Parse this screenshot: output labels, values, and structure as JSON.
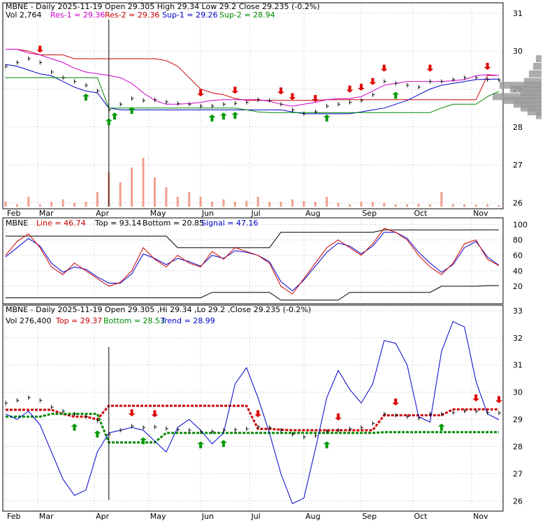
{
  "colors": {
    "price_bars": "#000000",
    "volume_bars": "#f0a08c",
    "resistance": "#cc0000",
    "support": "#008800",
    "res1_line": "#cc00cc",
    "sup1_line": "#0000cc",
    "trend_line": "#0000cc",
    "signal_line": "#cc0000",
    "sell_arrow": "#dd0000",
    "buy_arrow": "#009900",
    "volume_profile": "#999999",
    "grid": "#bbbbbb"
  },
  "x_axis": {
    "months": [
      "Feb",
      "Mar",
      "Apr",
      "May",
      "Jun",
      "Jul",
      "Aug",
      "Sep",
      "Oct",
      "Nov"
    ]
  },
  "chart_data": [
    {
      "type": "line",
      "panel": "price-support-resistance",
      "header": {
        "symbol": "MBNE",
        "title": "MBNE - Daily 2025-11-19 Open 29.305  High 29.34  Low 29.2  Close 29.235 (-0.2%)",
        "vol": "Vol 2,764",
        "res1": "Res-1 = 29.36",
        "res2": "Res-2 = 29.36",
        "sup1": "Sup-1 = 29.26",
        "sup2": "Sup-2 = 28.94"
      },
      "y_ticks": [
        26,
        27,
        28,
        29,
        30,
        31
      ],
      "ylim": [
        25.9,
        31.2
      ],
      "series": [
        {
          "name": "Res-1",
          "values": [
            30.05,
            30.05,
            29.95,
            29.9,
            29.8,
            29.7,
            29.55,
            29.45,
            29.4,
            29.36,
            29.3,
            29.15,
            28.9,
            28.7,
            28.6,
            28.6,
            28.62,
            28.65,
            28.7,
            28.72,
            28.72,
            28.72,
            28.72,
            28.68,
            28.6,
            28.55,
            28.6,
            28.65,
            28.72,
            28.75,
            28.75,
            28.8,
            28.95,
            29.1,
            29.15,
            29.2,
            29.2,
            29.2,
            29.2,
            29.22,
            29.25,
            29.35,
            29.38,
            29.36
          ]
        },
        {
          "name": "Res-2",
          "values": [
            30.05,
            30.05,
            30.0,
            29.9,
            29.9,
            29.9,
            29.8,
            29.8,
            29.8,
            29.8,
            29.8,
            29.8,
            29.8,
            29.8,
            29.75,
            29.6,
            29.3,
            29.0,
            28.9,
            28.85,
            28.75,
            28.7,
            28.7,
            28.7,
            28.7,
            28.7,
            28.7,
            28.7,
            28.72,
            28.72,
            28.72,
            28.72,
            28.72,
            28.72,
            28.72,
            28.72,
            28.72,
            28.72,
            28.72,
            28.72,
            28.72,
            28.72,
            29.36,
            29.36
          ]
        },
        {
          "name": "Sup-1",
          "values": [
            29.65,
            29.6,
            29.5,
            29.4,
            29.35,
            29.2,
            29.05,
            28.95,
            28.9,
            28.5,
            28.45,
            28.45,
            28.45,
            28.45,
            28.45,
            28.45,
            28.45,
            28.45,
            28.45,
            28.45,
            28.45,
            28.45,
            28.45,
            28.45,
            28.45,
            28.4,
            28.35,
            28.35,
            28.35,
            28.35,
            28.35,
            28.4,
            28.45,
            28.5,
            28.6,
            28.7,
            28.85,
            29.0,
            29.1,
            29.15,
            29.2,
            29.25,
            29.26,
            29.26
          ]
        },
        {
          "name": "Sup-2",
          "values": [
            29.3,
            29.3,
            29.3,
            29.3,
            29.3,
            29.3,
            29.3,
            29.3,
            29.3,
            28.5,
            28.5,
            28.5,
            28.5,
            28.5,
            28.5,
            28.5,
            28.5,
            28.5,
            28.5,
            28.5,
            28.5,
            28.45,
            28.4,
            28.38,
            28.38,
            28.38,
            28.38,
            28.38,
            28.38,
            28.38,
            28.38,
            28.38,
            28.38,
            28.38,
            28.38,
            28.38,
            28.38,
            28.38,
            28.5,
            28.6,
            28.6,
            28.6,
            28.8,
            28.94
          ]
        },
        {
          "name": "Close",
          "values": [
            29.6,
            29.7,
            29.8,
            29.7,
            29.45,
            29.3,
            29.2,
            29.1,
            28.95,
            28.45,
            28.6,
            28.75,
            28.7,
            28.72,
            28.66,
            28.62,
            28.6,
            28.55,
            28.55,
            28.6,
            28.62,
            28.65,
            28.72,
            28.7,
            28.6,
            28.45,
            28.35,
            28.4,
            28.55,
            28.6,
            28.65,
            28.7,
            28.85,
            29.2,
            29.15,
            29.1,
            29.05,
            29.2,
            29.2,
            29.25,
            29.3,
            29.3,
            29.25,
            29.235
          ]
        },
        {
          "name": "Volume",
          "values": [
            0.1,
            0.05,
            0.2,
            0.05,
            0.1,
            0.15,
            0.08,
            0.1,
            0.3,
            0.7,
            0.5,
            0.8,
            1.0,
            0.6,
            0.4,
            0.2,
            0.3,
            0.2,
            0.1,
            0.15,
            0.1,
            0.12,
            0.2,
            0.1,
            0.1,
            0.15,
            0.12,
            0.1,
            0.2,
            0.08,
            0.05,
            0.1,
            0.1,
            0.08,
            0.05,
            0.05,
            0.06,
            0.05,
            0.3,
            0.05,
            0.05,
            0.04,
            0.05,
            0.03
          ]
        }
      ],
      "sell_signals_x": [
        3,
        17,
        20,
        24,
        25,
        27,
        30,
        31,
        32,
        33,
        37,
        42
      ],
      "buy_signals_x": [
        7,
        9,
        11,
        18,
        19,
        20,
        28,
        34,
        9.5
      ]
    },
    {
      "type": "line",
      "panel": "stochastic",
      "header": {
        "symbol": "MBNE",
        "line": "Line = 46.74",
        "top": "Top = 93.14",
        "bottom": "Bottom = 20.85",
        "signal": "Signal = 47.16"
      },
      "y_ticks": [
        20,
        40,
        60,
        80,
        100
      ],
      "ylim": [
        0,
        105
      ],
      "series": [
        {
          "name": "Line",
          "values": [
            60,
            78,
            88,
            70,
            45,
            35,
            50,
            40,
            30,
            20,
            25,
            40,
            70,
            55,
            45,
            60,
            50,
            45,
            65,
            55,
            70,
            65,
            60,
            50,
            20,
            10,
            30,
            50,
            70,
            80,
            70,
            60,
            75,
            95,
            90,
            80,
            60,
            45,
            35,
            50,
            75,
            80,
            55,
            46.74
          ]
        },
        {
          "name": "Signal",
          "values": [
            58,
            70,
            82,
            72,
            50,
            38,
            45,
            42,
            32,
            24,
            24,
            36,
            62,
            56,
            48,
            56,
            52,
            46,
            60,
            56,
            66,
            64,
            60,
            52,
            26,
            14,
            28,
            46,
            64,
            76,
            72,
            62,
            72,
            90,
            90,
            82,
            64,
            50,
            38,
            48,
            70,
            78,
            58,
            47.16
          ]
        },
        {
          "name": "Top",
          "values": [
            85,
            85,
            85,
            85,
            85,
            85,
            85,
            85,
            85,
            85,
            85,
            85,
            85,
            85,
            85,
            70,
            70,
            70,
            70,
            70,
            70,
            70,
            70,
            70,
            90,
            90,
            90,
            90,
            90,
            90,
            90,
            90,
            90,
            93,
            93,
            93,
            93,
            93,
            93,
            93,
            93,
            93,
            93.14,
            93.14
          ]
        },
        {
          "name": "Bottom",
          "values": [
            5,
            5,
            5,
            5,
            5,
            5,
            5,
            5,
            5,
            5,
            5,
            5,
            5,
            5,
            5,
            5,
            5,
            5,
            12,
            12,
            12,
            12,
            12,
            12,
            2,
            2,
            2,
            2,
            2,
            2,
            12,
            12,
            12,
            12,
            12,
            12,
            12,
            12,
            20,
            20,
            20,
            20,
            20.85,
            20.85
          ]
        }
      ]
    },
    {
      "type": "line",
      "panel": "price-trend",
      "header": {
        "symbol": "MBNE",
        "title": "MBNE - Daily 2025-11-19 Open 29.305 ,Hi 29.34 ,Lo 29.2 ,Close 29.235 (-0.2%)",
        "vol": "Vol 276,400",
        "top": "Top = 29.37",
        "bottom": "Bottom = 28.53",
        "trend": "Trend = 28.99"
      },
      "y_ticks": [
        26,
        27,
        28,
        29,
        30,
        31,
        32,
        33
      ],
      "ylim": [
        25.7,
        33.1
      ],
      "series": [
        {
          "name": "Close",
          "values": [
            29.6,
            29.7,
            29.8,
            29.7,
            29.45,
            29.3,
            29.2,
            29.1,
            28.95,
            28.45,
            28.6,
            28.75,
            28.7,
            28.72,
            28.66,
            28.62,
            28.6,
            28.55,
            28.55,
            28.6,
            28.62,
            28.65,
            28.72,
            28.7,
            28.6,
            28.45,
            28.35,
            28.4,
            28.55,
            28.6,
            28.65,
            28.7,
            28.85,
            29.2,
            29.15,
            29.1,
            29.05,
            29.2,
            29.2,
            29.25,
            29.3,
            29.3,
            29.25,
            29.235
          ]
        },
        {
          "name": "Trend",
          "values": [
            29.2,
            29.0,
            29.3,
            28.8,
            27.8,
            26.8,
            26.2,
            26.4,
            27.8,
            28.5,
            28.6,
            28.7,
            28.6,
            28.2,
            27.8,
            28.7,
            29.0,
            28.6,
            28.1,
            28.5,
            30.3,
            30.9,
            29.8,
            28.5,
            27.0,
            25.9,
            26.1,
            27.9,
            29.8,
            30.8,
            30.1,
            29.6,
            30.3,
            31.9,
            31.8,
            31.0,
            29.1,
            28.9,
            31.5,
            32.6,
            32.4,
            30.4,
            29.2,
            28.99
          ]
        },
        {
          "name": "Top",
          "values": [
            29.35,
            29.35,
            29.35,
            29.35,
            29.35,
            29.2,
            29.1,
            29.1,
            29.0,
            29.5,
            29.5,
            29.5,
            29.5,
            29.5,
            29.5,
            29.5,
            29.5,
            29.5,
            29.5,
            29.5,
            29.5,
            29.5,
            28.65,
            28.65,
            28.62,
            28.6,
            28.6,
            28.6,
            28.6,
            28.6,
            28.6,
            28.6,
            28.6,
            29.15,
            29.15,
            29.15,
            29.15,
            29.15,
            29.15,
            29.37,
            29.37,
            29.37,
            29.37,
            29.37
          ]
        },
        {
          "name": "Bottom",
          "values": [
            29.1,
            29.1,
            29.1,
            29.1,
            29.2,
            29.2,
            29.2,
            29.2,
            29.2,
            28.15,
            28.15,
            28.15,
            28.15,
            28.15,
            28.5,
            28.5,
            28.5,
            28.5,
            28.5,
            28.5,
            28.5,
            28.5,
            28.5,
            28.5,
            28.5,
            28.5,
            28.5,
            28.5,
            28.5,
            28.5,
            28.5,
            28.5,
            28.5,
            28.53,
            28.53,
            28.53,
            28.53,
            28.53,
            28.53,
            28.53,
            28.53,
            28.53,
            28.53,
            28.53
          ]
        }
      ],
      "sell_signals_x": [
        11,
        13,
        22,
        29,
        34,
        41,
        44
      ],
      "buy_signals_x": [
        6,
        8,
        12,
        17,
        19,
        28,
        38
      ]
    }
  ]
}
